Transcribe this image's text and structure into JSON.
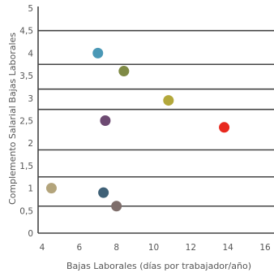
{
  "chart_data": {
    "type": "scatter",
    "title": "",
    "xlabel": "Bajas Laborales (días por trabajador/año)",
    "ylabel": "Complemento Salarial Bajas Laborales",
    "xlim": [
      4,
      16
    ],
    "ylim": [
      0,
      5
    ],
    "x_ticks": [
      4,
      6,
      8,
      10,
      12,
      14,
      16
    ],
    "y_ticks": [
      0,
      0.5,
      1,
      1.5,
      2,
      2.5,
      3,
      3.5,
      4,
      4.5,
      5
    ],
    "x_tick_labels": [
      "4",
      "6",
      "8",
      "10",
      "12",
      "14",
      "16"
    ],
    "y_tick_labels": [
      "0",
      "0,5",
      "1",
      "1,5",
      "2",
      "2,5",
      "3",
      "3,5",
      "4",
      "4,5",
      "5"
    ],
    "grid": "horizontal",
    "points": [
      {
        "x": 7.0,
        "y": 4.0,
        "color": "#4a98b6"
      },
      {
        "x": 8.4,
        "y": 3.6,
        "color": "#7f8a45"
      },
      {
        "x": 10.8,
        "y": 2.95,
        "color": "#b3a83b"
      },
      {
        "x": 7.4,
        "y": 2.5,
        "color": "#6d4a72"
      },
      {
        "x": 13.8,
        "y": 2.35,
        "color": "#e8281e"
      },
      {
        "x": 4.5,
        "y": 1.0,
        "color": "#b3a47b"
      },
      {
        "x": 7.3,
        "y": 0.9,
        "color": "#3f6177"
      },
      {
        "x": 8.0,
        "y": 0.6,
        "color": "#7e6e6b"
      }
    ]
  }
}
